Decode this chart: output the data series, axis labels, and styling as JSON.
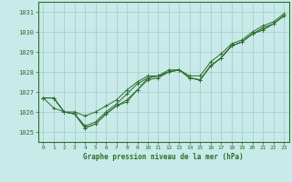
{
  "title": "Graphe pression niveau de la mer (hPa)",
  "bg_color": "#c8eae8",
  "grid_color": "#aacfcc",
  "line_color": "#2d6e2d",
  "xlim": [
    -0.5,
    23.5
  ],
  "ylim": [
    1024.5,
    1031.5
  ],
  "yticks": [
    1025,
    1026,
    1027,
    1028,
    1029,
    1030,
    1031
  ],
  "xticks": [
    0,
    1,
    2,
    3,
    4,
    5,
    6,
    7,
    8,
    9,
    10,
    11,
    12,
    13,
    14,
    15,
    16,
    17,
    18,
    19,
    20,
    21,
    22,
    23
  ],
  "figsize": [
    3.2,
    2.0
  ],
  "dpi": 100,
  "series": [
    [
      1026.7,
      1026.7,
      1026.0,
      1025.9,
      1025.2,
      1025.4,
      1025.9,
      1026.3,
      1026.6,
      1027.1,
      1027.7,
      1027.8,
      1028.0,
      1028.1,
      1027.7,
      1027.6,
      1028.3,
      1028.7,
      1029.3,
      1029.5,
      1029.9,
      1030.1,
      1030.4,
      1030.8
    ],
    [
      1026.7,
      1026.7,
      1026.0,
      1025.9,
      1025.3,
      1025.5,
      1026.0,
      1026.4,
      1026.9,
      1027.4,
      1027.7,
      1027.8,
      1028.0,
      1028.1,
      1027.7,
      1027.6,
      1028.3,
      1028.7,
      1029.3,
      1029.5,
      1029.9,
      1030.2,
      1030.4,
      1030.8
    ],
    [
      1026.7,
      1026.7,
      1026.0,
      1026.0,
      1025.8,
      1026.0,
      1026.3,
      1026.6,
      1027.1,
      1027.5,
      1027.8,
      1027.8,
      1028.1,
      1028.1,
      1027.8,
      1027.8,
      1028.5,
      1028.9,
      1029.4,
      1029.6,
      1030.0,
      1030.3,
      1030.5,
      1030.9
    ],
    [
      1026.7,
      1026.2,
      1026.0,
      1025.9,
      1025.2,
      1025.4,
      1025.9,
      1026.3,
      1026.5,
      1027.1,
      1027.6,
      1027.7,
      1028.0,
      1028.1,
      1027.7,
      1027.6,
      1028.3,
      1028.7,
      1029.3,
      1029.5,
      1029.9,
      1030.1,
      1030.4,
      1030.8
    ]
  ]
}
